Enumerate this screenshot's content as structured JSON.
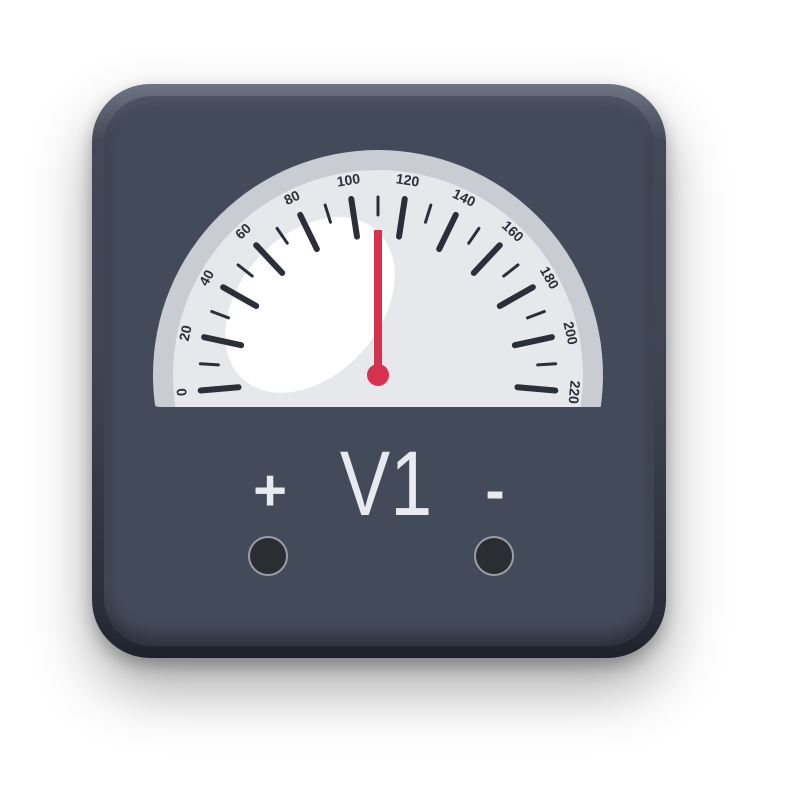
{
  "meter": {
    "name": "V1",
    "positive_label": "+",
    "negative_label": "-",
    "scale_labels": [
      "0",
      "20",
      "40",
      "60",
      "80",
      "100",
      "120",
      "140",
      "160",
      "180",
      "200",
      "220"
    ],
    "scale_min": 0,
    "scale_max": 220,
    "needle_value": 110,
    "colors": {
      "body": "#434a5a",
      "dial": "#e6e8ec",
      "ticks": "#2a2f3a",
      "needle": "#d6324d",
      "text": "#e8eaef"
    }
  }
}
